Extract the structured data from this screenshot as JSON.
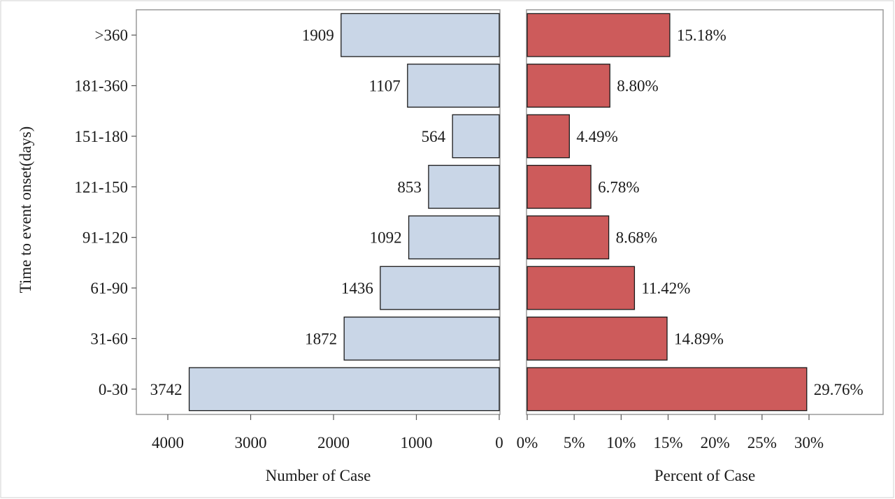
{
  "chart_data": {
    "type": "bar",
    "orientation": "horizontal",
    "categories": [
      "0-30",
      "31-60",
      "61-90",
      "91-120",
      "121-150",
      "151-180",
      "181-360",
      ">360"
    ],
    "ylabel": "Time to event onset(days)",
    "panels": [
      {
        "name": "count",
        "xlabel": "Number of Case",
        "values": [
          3742,
          1872,
          1436,
          1092,
          853,
          564,
          1107,
          1909
        ],
        "value_labels": [
          "3742",
          "1872",
          "1436",
          "1092",
          "853",
          "564",
          "1107",
          "1909"
        ],
        "xlim": [
          0,
          4000
        ],
        "reversed": true,
        "ticks": [
          4000,
          3000,
          2000,
          1000,
          0
        ],
        "tick_labels": [
          "4000",
          "3000",
          "2000",
          "1000",
          "0"
        ],
        "color": "#c9d6e7"
      },
      {
        "name": "percent",
        "xlabel": "Percent of Case",
        "values": [
          29.76,
          14.89,
          11.42,
          8.68,
          6.78,
          4.49,
          8.8,
          15.18
        ],
        "value_labels": [
          "29.76%",
          "14.89%",
          "11.42%",
          "8.68%",
          "6.78%",
          "4.49%",
          "8.80%",
          "15.18%"
        ],
        "xlim": [
          0,
          30
        ],
        "reversed": false,
        "ticks": [
          0,
          5,
          10,
          15,
          20,
          25,
          30
        ],
        "tick_labels": [
          "0%",
          "5%",
          "10%",
          "15%",
          "20%",
          "25%",
          "30%"
        ],
        "color": "#cd5b5b"
      }
    ],
    "grid": false,
    "legend": "none"
  }
}
